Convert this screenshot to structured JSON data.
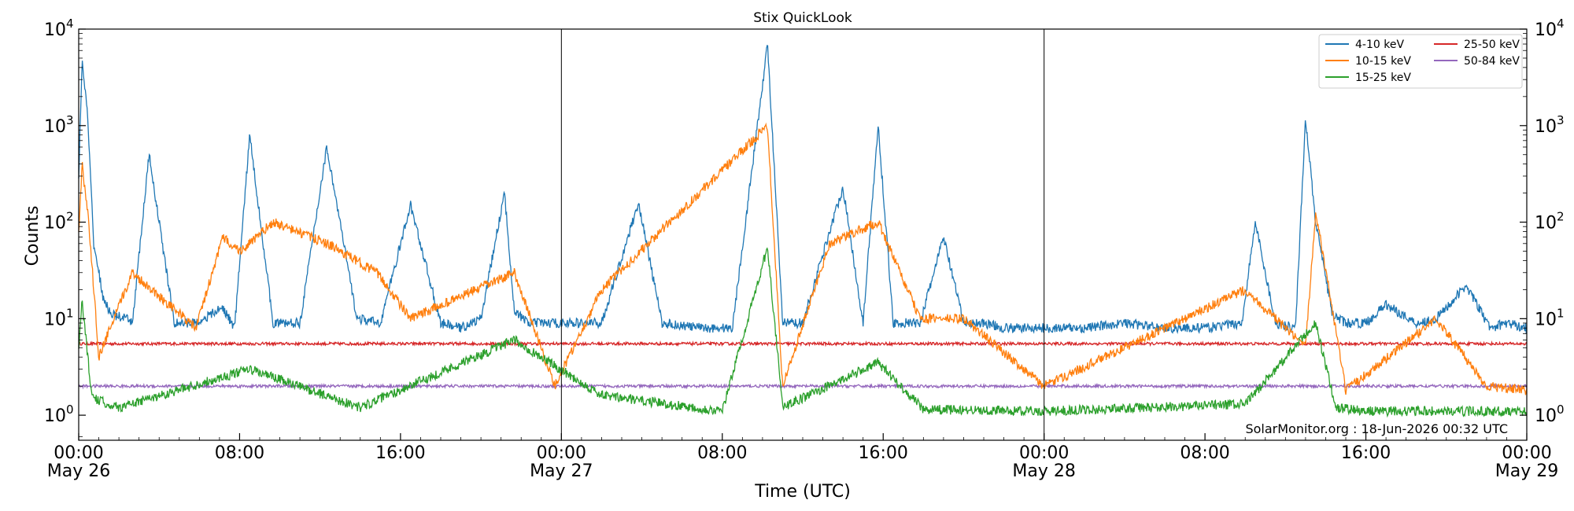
{
  "chart_data": {
    "type": "line",
    "title": "Stix QuickLook",
    "xlabel": "Time (UTC)",
    "ylabel": "Counts",
    "yscale": "log",
    "ylim": [
      0.55,
      10000
    ],
    "xlim": [
      "2026-05-26 00:00",
      "2026-05-29 00:00"
    ],
    "grid": false,
    "legend_position": "top-right",
    "day_dividers": [
      "2026-05-27 00:00",
      "2026-05-28 00:00"
    ],
    "y_ticks": [
      {
        "value": 1,
        "base": "10",
        "exp": "0"
      },
      {
        "value": 10,
        "base": "10",
        "exp": "1"
      },
      {
        "value": 100,
        "base": "10",
        "exp": "2"
      },
      {
        "value": 1000,
        "base": "10",
        "exp": "3"
      },
      {
        "value": 10000,
        "base": "10",
        "exp": "4"
      }
    ],
    "x_ticks": [
      {
        "time": "2026-05-26 00:00",
        "label": "00:00",
        "sublabel": "May 26"
      },
      {
        "time": "2026-05-26 08:00",
        "label": "08:00",
        "sublabel": ""
      },
      {
        "time": "2026-05-26 16:00",
        "label": "16:00",
        "sublabel": ""
      },
      {
        "time": "2026-05-27 00:00",
        "label": "00:00",
        "sublabel": "May 27"
      },
      {
        "time": "2026-05-27 08:00",
        "label": "08:00",
        "sublabel": ""
      },
      {
        "time": "2026-05-27 16:00",
        "label": "16:00",
        "sublabel": ""
      },
      {
        "time": "2026-05-28 00:00",
        "label": "00:00",
        "sublabel": "May 28"
      },
      {
        "time": "2026-05-28 08:00",
        "label": "08:00",
        "sublabel": ""
      },
      {
        "time": "2026-05-28 16:00",
        "label": "16:00",
        "sublabel": ""
      },
      {
        "time": "2026-05-29 00:00",
        "label": "00:00",
        "sublabel": "May 29"
      }
    ],
    "series": [
      {
        "name": "4-10 keV",
        "color": "#1f77b4",
        "x": [
          "2026-05-26 00:00",
          "2026-05-26 00:10",
          "2026-05-26 00:25",
          "2026-05-26 00:45",
          "2026-05-26 01:15",
          "2026-05-26 01:40",
          "2026-05-26 02:20",
          "2026-05-26 02:40",
          "2026-05-26 03:30",
          "2026-05-26 04:45",
          "2026-05-26 05:50",
          "2026-05-26 07:10",
          "2026-05-26 07:45",
          "2026-05-26 08:30",
          "2026-05-26 09:40",
          "2026-05-26 11:00",
          "2026-05-26 12:20",
          "2026-05-26 13:50",
          "2026-05-26 15:00",
          "2026-05-26 16:30",
          "2026-05-26 18:00",
          "2026-05-26 19:00",
          "2026-05-26 20:00",
          "2026-05-26 21:10",
          "2026-05-26 21:40",
          "2026-05-26 22:20",
          "2026-05-26 23:40",
          "2026-05-27 02:00",
          "2026-05-27 03:50",
          "2026-05-27 05:00",
          "2026-05-27 07:00",
          "2026-05-27 08:30",
          "2026-05-27 10:15",
          "2026-05-27 11:00",
          "2026-05-27 12:00",
          "2026-05-27 13:20",
          "2026-05-27 14:00",
          "2026-05-27 15:00",
          "2026-05-27 15:45",
          "2026-05-27 16:30",
          "2026-05-27 17:50",
          "2026-05-27 19:00",
          "2026-05-27 20:00",
          "2026-05-27 21:00",
          "2026-05-27 22:00",
          "2026-05-28 00:00",
          "2026-05-28 02:00",
          "2026-05-28 04:00",
          "2026-05-28 06:00",
          "2026-05-28 08:00",
          "2026-05-28 09:50",
          "2026-05-28 10:30",
          "2026-05-28 11:30",
          "2026-05-28 12:30",
          "2026-05-28 13:00",
          "2026-05-28 13:30",
          "2026-05-28 14:20",
          "2026-05-28 15:00",
          "2026-05-28 16:00",
          "2026-05-28 17:00",
          "2026-05-28 18:30",
          "2026-05-28 19:30",
          "2026-05-28 21:00",
          "2026-05-28 22:10",
          "2026-05-28 23:00",
          "2026-05-29 00:00"
        ],
        "values": [
          300,
          4500,
          1500,
          60,
          15,
          11,
          10,
          9,
          500,
          9,
          9,
          13,
          8,
          800,
          9,
          9,
          600,
          10,
          9,
          150,
          9,
          8,
          10,
          200,
          12,
          9,
          9,
          9,
          160,
          9,
          8,
          8,
          7000,
          9,
          9,
          80,
          230,
          9,
          1000,
          9,
          9,
          70,
          9,
          9,
          8,
          8,
          8,
          9,
          8,
          8,
          9,
          100,
          9,
          8,
          1200,
          100,
          11,
          9,
          9,
          14,
          9,
          10,
          22,
          8,
          9,
          8
        ]
      },
      {
        "name": "10-15 keV",
        "color": "#ff7f0e",
        "x": [
          "2026-05-26 00:00",
          "2026-05-26 00:10",
          "2026-05-26 00:30",
          "2026-05-26 01:00",
          "2026-05-26 02:40",
          "2026-05-26 05:50",
          "2026-05-26 07:10",
          "2026-05-26 08:00",
          "2026-05-26 08:30",
          "2026-05-26 09:40",
          "2026-05-26 12:20",
          "2026-05-26 14:50",
          "2026-05-26 16:30",
          "2026-05-26 21:40",
          "2026-05-26 23:40",
          "2026-05-27 02:00",
          "2026-05-27 10:15",
          "2026-05-27 11:00",
          "2026-05-27 13:20",
          "2026-05-27 15:45",
          "2026-05-27 17:50",
          "2026-05-27 20:00",
          "2026-05-28 00:00",
          "2026-05-28 10:00",
          "2026-05-28 13:00",
          "2026-05-28 13:30",
          "2026-05-28 14:10",
          "2026-05-28 15:00",
          "2026-05-28 19:30",
          "2026-05-28 22:00",
          "2026-05-29 00:00"
        ],
        "values": [
          80,
          400,
          100,
          4,
          30,
          8,
          70,
          50,
          60,
          100,
          60,
          30,
          10,
          30,
          2,
          20,
          1000,
          2,
          60,
          100,
          10,
          10,
          2,
          20,
          5,
          130,
          20,
          1.8,
          10,
          2,
          1.8
        ]
      },
      {
        "name": "15-25 keV",
        "color": "#2ca02c",
        "x": [
          "2026-05-26 00:00",
          "2026-05-26 00:10",
          "2026-05-26 00:40",
          "2026-05-26 02:00",
          "2026-05-26 08:30",
          "2026-05-26 14:00",
          "2026-05-26 21:40",
          "2026-05-27 02:00",
          "2026-05-27 08:00",
          "2026-05-27 10:15",
          "2026-05-27 11:00",
          "2026-05-27 15:45",
          "2026-05-27 18:00",
          "2026-05-28 00:00",
          "2026-05-28 10:00",
          "2026-05-28 13:30",
          "2026-05-28 14:30",
          "2026-05-28 16:00",
          "2026-05-29 00:00"
        ],
        "values": [
          5,
          15,
          1.5,
          1.2,
          3,
          1.2,
          6,
          1.6,
          1.1,
          55,
          1.2,
          3.5,
          1.15,
          1.1,
          1.3,
          9,
          1.2,
          1.1,
          1.1
        ]
      },
      {
        "name": "25-50 keV",
        "color": "#d62728",
        "x": [
          "2026-05-26 00:00",
          "2026-05-27 00:00",
          "2026-05-28 00:00",
          "2026-05-29 00:00"
        ],
        "values": [
          5.5,
          5.5,
          5.5,
          5.5
        ]
      },
      {
        "name": "50-84 keV",
        "color": "#9467bd",
        "x": [
          "2026-05-26 00:00",
          "2026-05-27 00:00",
          "2026-05-28 00:00",
          "2026-05-29 00:00"
        ],
        "values": [
          2.0,
          2.0,
          2.0,
          2.0
        ]
      }
    ],
    "annotation": "SolarMonitor.org : 18-Jun-2026 00:32 UTC"
  }
}
